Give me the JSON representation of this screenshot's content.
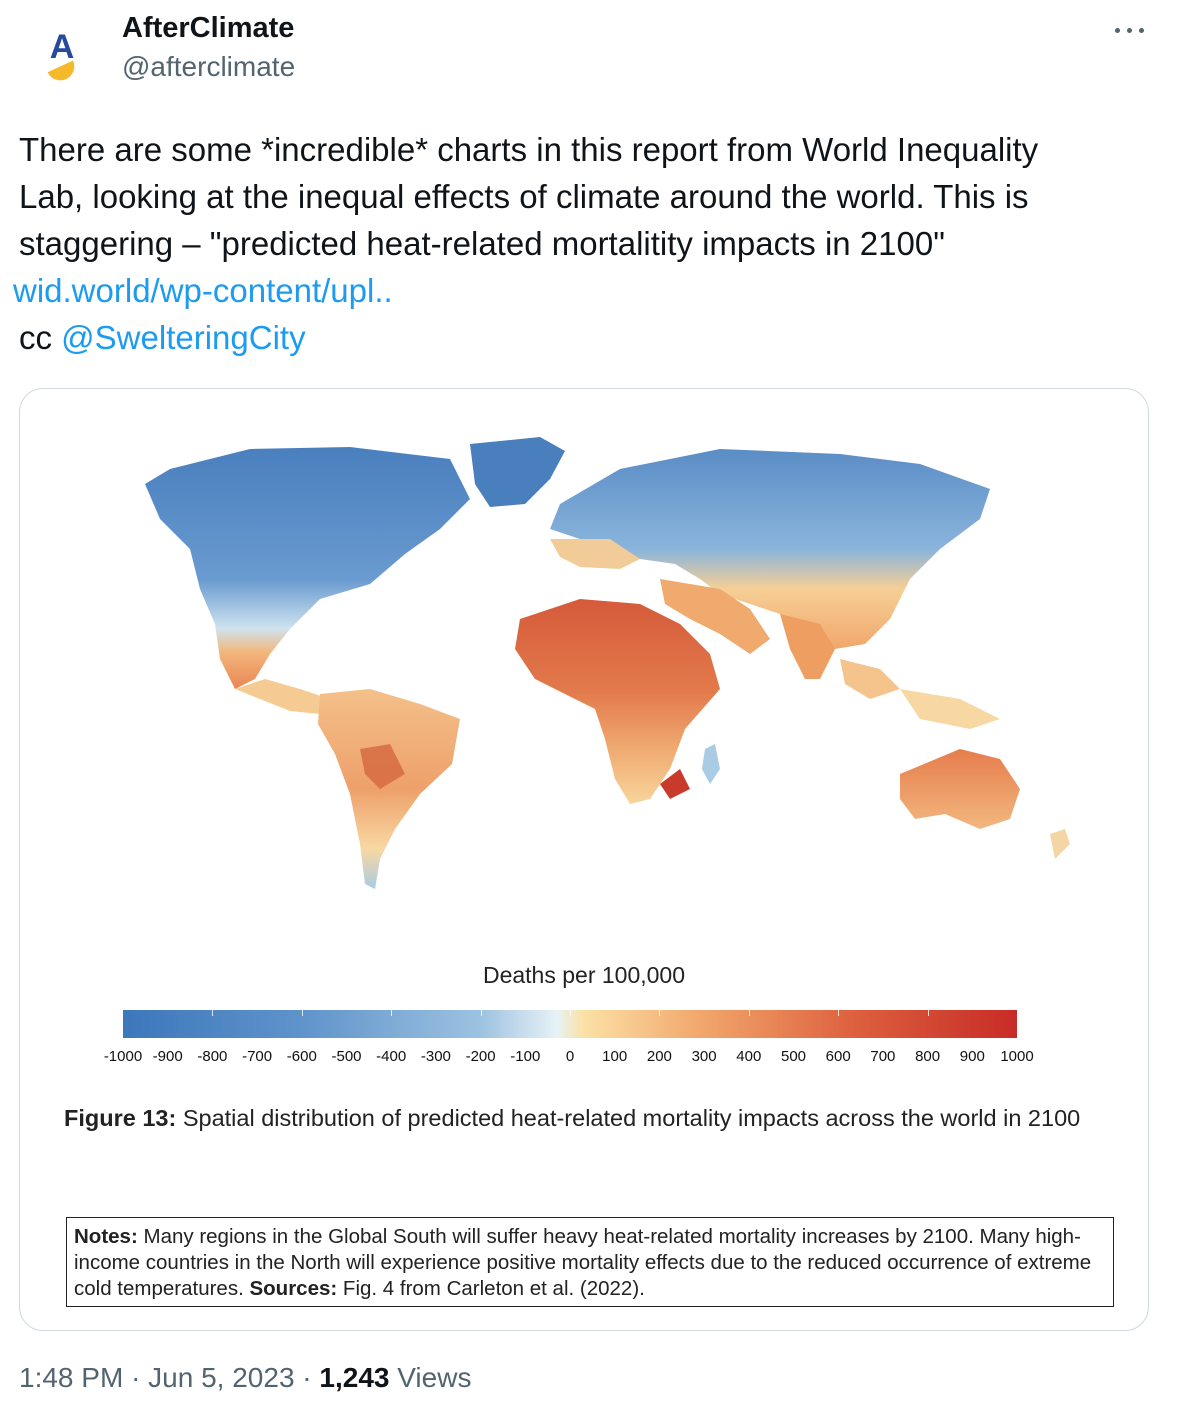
{
  "author": {
    "display_name": "AfterClimate",
    "handle": "@afterclimate",
    "avatar_letter": "A"
  },
  "tweet": {
    "line1": "There are some *incredible* charts in this report from World Inequality",
    "line2": "Lab, looking at the inequal effects of climate around the world. This is",
    "line3": "staggering – \"predicted heat-related mortalitity impacts in 2100\"",
    "link_text": "wid.world/wp-content/upl..",
    "cc_prefix": "cc",
    "mention": "@SwelteringCity"
  },
  "figure": {
    "legend_title": "Deaths per 100,000",
    "legend_ticks": [
      "-1000",
      "-900",
      "-800",
      "-700",
      "-600",
      "-500",
      "-400",
      "-300",
      "-200",
      "-100",
      "0",
      "100",
      "200",
      "300",
      "400",
      "500",
      "600",
      "700",
      "800",
      "900",
      "1000"
    ],
    "caption_label": "Figure 13:",
    "caption_text": "Spatial distribution of predicted heat-related mortality impacts across the world in 2100",
    "notes_label": "Notes:",
    "notes_text": "Many regions in the Global South will suffer heavy heat-related mortality increases by 2100. Many high-income countries in the North will experience positive mortality effects due to the reduced occurrence of extreme cold temperatures.",
    "sources_label": "Sources:",
    "sources_text": "Fig. 4 from Carleton et al. (2022).",
    "colors": {
      "cold": "#3d77bb",
      "neutral": "#e7f2f6",
      "warm": "#f1a56b",
      "hot": "#c72c26"
    }
  },
  "footer": {
    "time": "1:48 PM",
    "sep1": "·",
    "date": "Jun 5, 2023",
    "sep2": "·",
    "views_count": "1,243",
    "views_label": "Views"
  }
}
